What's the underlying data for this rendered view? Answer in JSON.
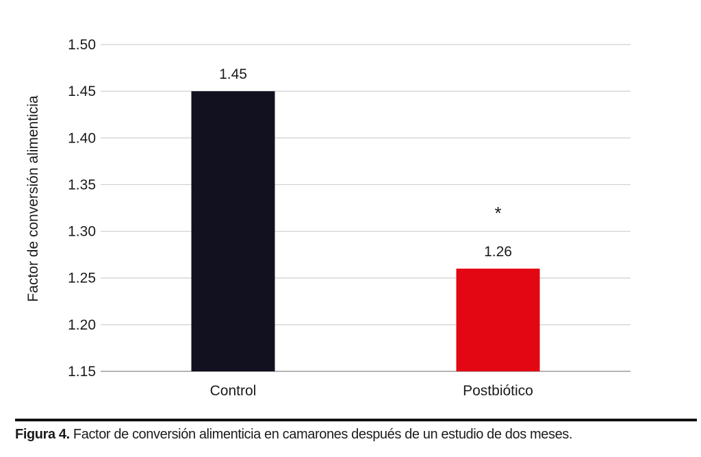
{
  "chart_data": {
    "type": "bar",
    "categories": [
      "Control",
      "Postbiótico"
    ],
    "values": [
      1.45,
      1.26
    ],
    "data_labels": [
      "1.45",
      "1.26"
    ],
    "bar_colors": [
      "#12111f",
      "#e30613"
    ],
    "ylabel": "Factor de conversión alimenticia",
    "ylim": [
      1.15,
      1.5
    ],
    "yticks": [
      1.15,
      1.2,
      1.25,
      1.3,
      1.35,
      1.4,
      1.45,
      1.5
    ],
    "ytick_labels": [
      "1.15",
      "1.20",
      "1.25",
      "1.30",
      "1.35",
      "1.40",
      "1.45",
      "1.50"
    ],
    "grid": true,
    "annotations": [
      {
        "category": "Postbiótico",
        "text": "*"
      }
    ]
  },
  "caption": {
    "label": "Figura 4.",
    "text": " Factor de conversión alimenticia en camarones después de un estudio de dos meses."
  }
}
